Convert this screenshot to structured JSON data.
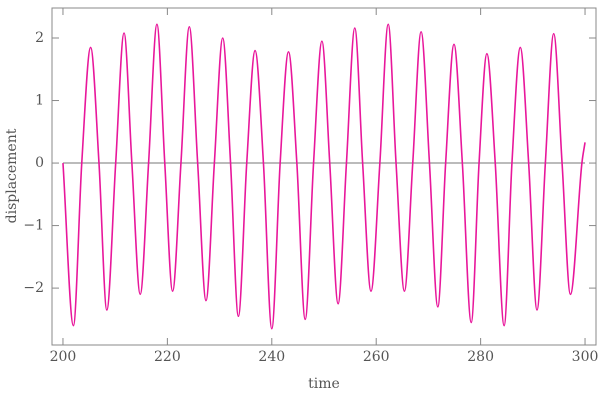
{
  "chart_data": {
    "type": "line",
    "x_label": "time",
    "y_label": "displacement",
    "x": [
      200,
      202,
      203.6,
      205.3,
      206.9,
      208.4,
      210.1,
      211.7,
      213.2,
      214.8,
      216.4,
      218,
      219.5,
      221,
      222.6,
      224.2,
      225.8,
      227.4,
      229,
      230.6,
      232.1,
      233.6,
      235.2,
      236.8,
      238.4,
      240,
      241.6,
      243.2,
      244.8,
      246.4,
      248,
      249.6,
      251.1,
      252.7,
      254.3,
      255.9,
      257.4,
      259,
      260.7,
      262.3,
      263.8,
      265.4,
      267,
      268.6,
      270.2,
      271.8,
      273.3,
      274.9,
      276.5,
      278.2,
      279.7,
      281.2,
      282.8,
      284.5,
      286,
      287.6,
      289.2,
      290.8,
      292.4,
      294,
      295.6,
      297.2,
      299.4,
      300
    ],
    "series": [
      {
        "color": "#e8179b",
        "values": [
          0,
          -2.6,
          0,
          1.85,
          0,
          -2.35,
          0,
          2.08,
          0,
          -2.1,
          0,
          2.22,
          0,
          -2.05,
          0,
          2.18,
          0,
          -2.2,
          0,
          2.0,
          0,
          -2.45,
          0,
          1.8,
          0,
          -2.65,
          0,
          1.78,
          0,
          -2.5,
          0,
          1.95,
          0,
          -2.25,
          0,
          2.16,
          0,
          -2.05,
          0,
          2.22,
          0,
          -2.05,
          0,
          2.1,
          0,
          -2.3,
          0,
          1.9,
          0,
          -2.55,
          0,
          1.75,
          0,
          -2.6,
          0,
          1.85,
          0,
          -2.35,
          0,
          2.07,
          0,
          -2.1,
          0,
          0.33
        ]
      }
    ],
    "xlim": [
      197.9,
      302.1
    ],
    "xticks": [
      200,
      220,
      240,
      260,
      280,
      300
    ],
    "ylim": [
      -2.91,
      2.48
    ],
    "yticks": [
      {
        "value": -2,
        "label": "−2"
      },
      {
        "value": -1,
        "label": "−1"
      },
      0,
      1,
      2
    ],
    "grid": false
  }
}
